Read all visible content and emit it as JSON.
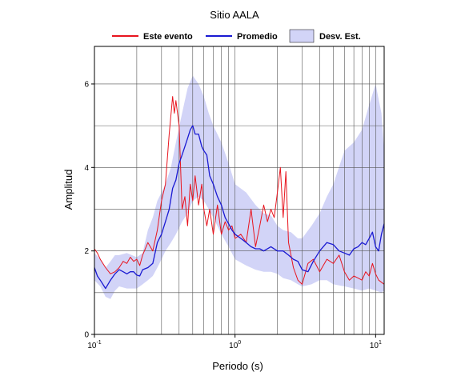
{
  "chart_data": {
    "type": "line",
    "title": "Sitio AALA",
    "xlabel": "Periodo (s)",
    "ylabel": "Amplitud",
    "xscale": "log",
    "xlim": [
      0.1,
      11.5
    ],
    "ylim": [
      0,
      6.9
    ],
    "x_tick_values": [
      0.1,
      1,
      10
    ],
    "x_tick_labels": [
      [
        "10",
        "-1"
      ],
      [
        "10",
        "0"
      ],
      [
        "10",
        "1"
      ]
    ],
    "y_ticks": [
      0,
      2,
      4,
      6
    ],
    "y_tick_labels": [
      "0",
      "2",
      "4",
      "6"
    ],
    "grid": true,
    "legend_position": "top-center",
    "colors": {
      "evento": "#e8141e",
      "promedio": "#1a1ad2",
      "band": "#d2d4f7"
    },
    "legend": {
      "evento": "Este evento",
      "promedio": "Promedio",
      "band": "Desv. Est."
    },
    "series": [
      {
        "name": "Este evento",
        "x": [
          0.1,
          0.105,
          0.11,
          0.12,
          0.13,
          0.14,
          0.15,
          0.16,
          0.17,
          0.18,
          0.19,
          0.2,
          0.21,
          0.22,
          0.24,
          0.26,
          0.28,
          0.3,
          0.32,
          0.34,
          0.36,
          0.37,
          0.38,
          0.4,
          0.42,
          0.44,
          0.46,
          0.48,
          0.5,
          0.52,
          0.55,
          0.58,
          0.6,
          0.63,
          0.66,
          0.7,
          0.75,
          0.8,
          0.85,
          0.9,
          0.95,
          1.0,
          1.1,
          1.2,
          1.3,
          1.4,
          1.5,
          1.6,
          1.7,
          1.8,
          1.9,
          2.0,
          2.1,
          2.2,
          2.3,
          2.4,
          2.6,
          2.8,
          3.0,
          3.3,
          3.6,
          4.0,
          4.5,
          5.0,
          5.5,
          6.0,
          6.5,
          7.0,
          7.5,
          8.0,
          8.5,
          9.0,
          9.5,
          10.0,
          10.5,
          11.0,
          11.5
        ],
        "y": [
          2.05,
          1.95,
          1.8,
          1.6,
          1.45,
          1.5,
          1.6,
          1.75,
          1.7,
          1.85,
          1.75,
          1.8,
          1.65,
          1.9,
          2.2,
          2.0,
          2.5,
          3.2,
          3.6,
          4.8,
          5.7,
          5.3,
          5.6,
          5.0,
          3.0,
          3.3,
          2.6,
          3.6,
          3.2,
          3.8,
          3.1,
          3.6,
          3.0,
          2.6,
          3.0,
          2.4,
          3.1,
          2.4,
          2.7,
          2.5,
          2.6,
          2.3,
          2.4,
          2.2,
          3.0,
          2.1,
          2.6,
          3.1,
          2.7,
          3.0,
          2.8,
          3.4,
          4.0,
          2.8,
          3.9,
          2.2,
          1.6,
          1.3,
          1.2,
          1.7,
          1.8,
          1.5,
          1.8,
          1.7,
          1.9,
          1.5,
          1.3,
          1.4,
          1.35,
          1.3,
          1.5,
          1.4,
          1.7,
          1.45,
          1.3,
          1.25,
          1.2
        ]
      },
      {
        "name": "Promedio",
        "x": [
          0.1,
          0.105,
          0.11,
          0.12,
          0.13,
          0.14,
          0.15,
          0.16,
          0.17,
          0.18,
          0.19,
          0.2,
          0.21,
          0.22,
          0.24,
          0.26,
          0.28,
          0.3,
          0.32,
          0.34,
          0.36,
          0.38,
          0.4,
          0.42,
          0.44,
          0.46,
          0.48,
          0.5,
          0.52,
          0.55,
          0.58,
          0.6,
          0.63,
          0.66,
          0.7,
          0.75,
          0.8,
          0.85,
          0.9,
          0.95,
          1.0,
          1.1,
          1.2,
          1.3,
          1.4,
          1.5,
          1.6,
          1.8,
          2.0,
          2.2,
          2.4,
          2.6,
          2.8,
          3.0,
          3.3,
          3.6,
          4.0,
          4.5,
          5.0,
          5.5,
          6.0,
          6.5,
          7.0,
          7.5,
          8.0,
          8.5,
          9.0,
          9.5,
          10.0,
          10.5,
          11.0,
          11.5
        ],
        "y": [
          1.6,
          1.4,
          1.3,
          1.1,
          1.3,
          1.45,
          1.55,
          1.5,
          1.45,
          1.5,
          1.5,
          1.42,
          1.4,
          1.55,
          1.6,
          1.7,
          2.2,
          2.4,
          2.7,
          3.0,
          3.5,
          3.7,
          4.1,
          4.3,
          4.5,
          4.7,
          4.9,
          5.0,
          4.8,
          4.8,
          4.5,
          4.4,
          4.3,
          3.8,
          3.6,
          3.3,
          3.1,
          2.8,
          2.65,
          2.5,
          2.4,
          2.3,
          2.2,
          2.1,
          2.05,
          2.05,
          2.0,
          2.1,
          2.0,
          2.0,
          1.9,
          1.8,
          1.75,
          1.55,
          1.5,
          1.75,
          2.0,
          2.2,
          2.15,
          2.0,
          1.95,
          1.9,
          2.05,
          2.1,
          2.2,
          2.15,
          2.3,
          2.45,
          2.1,
          2.0,
          2.4,
          2.65
        ]
      }
    ],
    "band": {
      "name": "Desv. Est.",
      "x": [
        0.1,
        0.11,
        0.12,
        0.13,
        0.14,
        0.15,
        0.17,
        0.2,
        0.22,
        0.24,
        0.26,
        0.28,
        0.3,
        0.32,
        0.35,
        0.38,
        0.42,
        0.46,
        0.5,
        0.55,
        0.6,
        0.65,
        0.7,
        0.8,
        0.9,
        1.0,
        1.2,
        1.4,
        1.6,
        1.8,
        2.0,
        2.2,
        2.5,
        2.8,
        3.0,
        3.5,
        4.0,
        4.5,
        5.0,
        6.0,
        7.0,
        8.0,
        9.0,
        10.0,
        11.0,
        11.5
      ],
      "upper": [
        1.95,
        1.8,
        1.6,
        1.75,
        1.9,
        1.9,
        1.95,
        1.85,
        1.95,
        2.5,
        2.8,
        3.2,
        3.4,
        3.6,
        4.0,
        4.6,
        5.3,
        5.9,
        6.2,
        6.0,
        5.7,
        5.3,
        5.0,
        4.6,
        4.1,
        3.6,
        3.4,
        3.1,
        2.9,
        2.85,
        2.6,
        2.5,
        2.45,
        2.3,
        2.3,
        2.6,
        2.9,
        3.3,
        3.6,
        4.4,
        4.6,
        4.9,
        5.5,
        6.0,
        5.3,
        4.4
      ],
      "lower": [
        1.3,
        1.15,
        0.9,
        0.85,
        1.05,
        1.15,
        1.1,
        1.1,
        1.2,
        1.3,
        1.4,
        1.6,
        1.8,
        2.0,
        2.2,
        2.4,
        2.7,
        2.9,
        3.2,
        3.3,
        3.2,
        3.0,
        2.8,
        2.4,
        2.1,
        1.8,
        1.65,
        1.55,
        1.5,
        1.5,
        1.45,
        1.35,
        1.3,
        1.2,
        1.15,
        1.2,
        1.3,
        1.3,
        1.2,
        1.15,
        1.1,
        1.05,
        1.1,
        1.05,
        1.0,
        1.05
      ]
    }
  }
}
